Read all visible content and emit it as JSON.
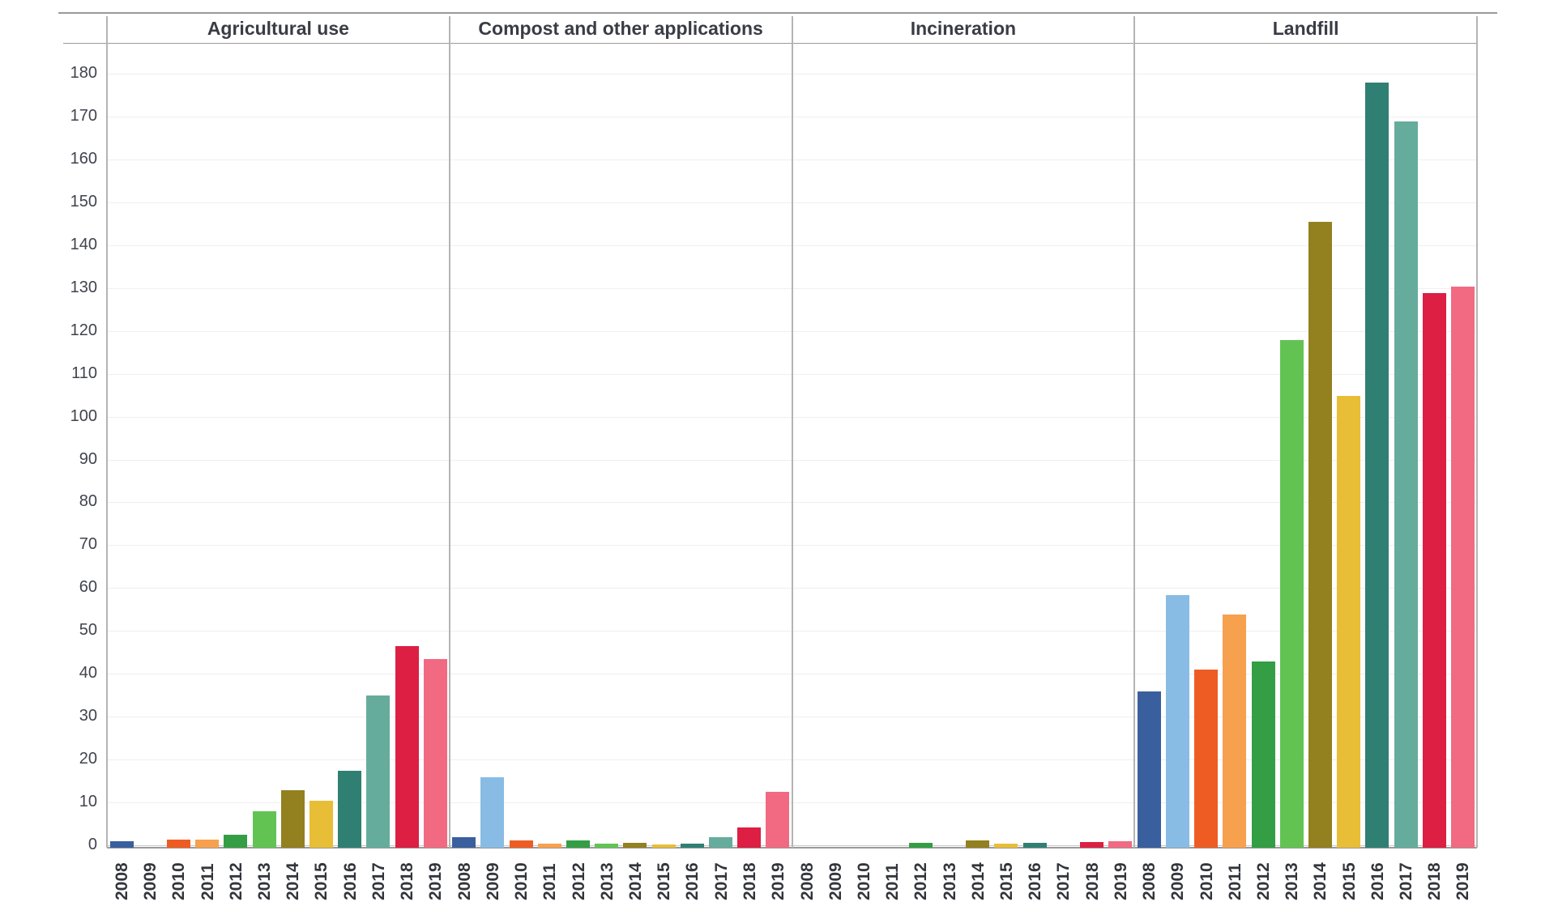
{
  "chart_data": {
    "type": "bar",
    "title": "",
    "layout": "small-multiples: 4 side-by-side panels sharing one y-axis, bars colored by year, no legend",
    "categories": [
      "2008",
      "2009",
      "2010",
      "2011",
      "2012",
      "2013",
      "2014",
      "2015",
      "2016",
      "2017",
      "2018",
      "2019"
    ],
    "category_colors": [
      "#3A5F9E",
      "#88BCE4",
      "#EF5C23",
      "#F7A04E",
      "#339E44",
      "#62C353",
      "#93801F",
      "#E8BE37",
      "#2F7F73",
      "#66AC9D",
      "#DC1F43",
      "#F16A82"
    ],
    "panels": [
      {
        "title": "Agricultural use",
        "values": [
          1,
          0,
          1.5,
          1.5,
          2.5,
          8,
          13,
          10.5,
          17.5,
          35,
          46.5,
          43.5
        ]
      },
      {
        "title": "Compost and other applications",
        "values": [
          2,
          16,
          1.3,
          0.4,
          1.2,
          0.5,
          0.7,
          0.2,
          0.4,
          1.9,
          4.3,
          12.5
        ]
      },
      {
        "title": "Incineration",
        "values": [
          0,
          0,
          0,
          0,
          0.6,
          0,
          1.2,
          0.5,
          0.7,
          0,
          0.8,
          1.1
        ]
      },
      {
        "title": "Landfill",
        "values": [
          36,
          58.5,
          41,
          54,
          43,
          118,
          145.5,
          105,
          178,
          169,
          129,
          130.5
        ]
      }
    ],
    "xlabel": "",
    "ylabel": "",
    "ylim": [
      0,
      185
    ],
    "yticks": [
      0,
      10,
      20,
      30,
      40,
      50,
      60,
      70,
      80,
      90,
      100,
      110,
      120,
      130,
      140,
      150,
      160,
      170,
      180
    ],
    "grid": "horizontal light gray gridlines every 10 units",
    "legend": "none"
  },
  "colors": {
    "background": "#ffffff",
    "gridline": "#efefef",
    "zero_line": "#c9c9c9",
    "panel_divider": "#b4b4b4",
    "frame_line": "#9a9a9a",
    "tick_text": "#41434e",
    "title_text": "#3a3c45",
    "year_text": "#33353c"
  }
}
